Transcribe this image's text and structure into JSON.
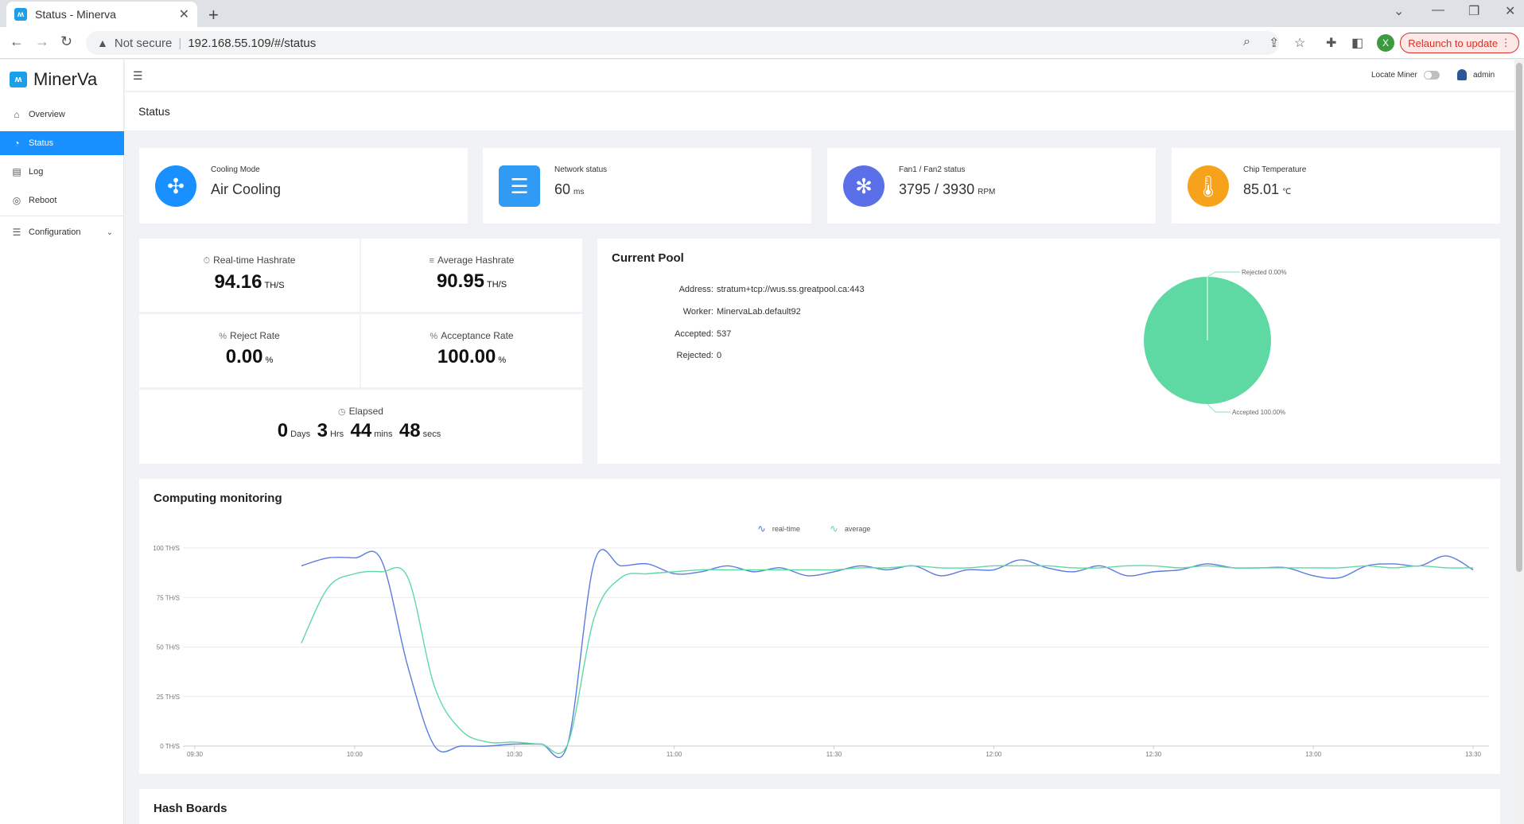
{
  "browser": {
    "tab_title": "Status - Minerva",
    "tab_favicon": "minerva-logo",
    "not_secure": "Not secure",
    "url": "192.168.55.109/#/status",
    "profile_initial": "X",
    "relaunch_label": "Relaunch to update"
  },
  "app": {
    "logo_text": "MinerVa",
    "menu": [
      {
        "label": "Overview",
        "icon": "home-icon"
      },
      {
        "label": "Status",
        "icon": "dashboard-icon"
      },
      {
        "label": "Log",
        "icon": "file-icon"
      },
      {
        "label": "Reboot",
        "icon": "power-icon"
      },
      {
        "label": "Configuration",
        "icon": "sliders-icon"
      }
    ],
    "locate_miner": "Locate Miner",
    "user": "admin",
    "page_title": "Status"
  },
  "stats": [
    {
      "label": "Cooling Mode",
      "value": "Air Cooling",
      "unit": "",
      "color": "#1890ff"
    },
    {
      "label": "Network status",
      "value": "60",
      "unit": "ms",
      "color": "#2f9bf5"
    },
    {
      "label": "Fan1 / Fan2 status",
      "value": "3795 / 3930",
      "unit": "RPM",
      "color": "#5b6fe8"
    },
    {
      "label": "Chip Temperature",
      "value": "85.01",
      "unit": "℃",
      "color": "#f7a21b"
    }
  ],
  "hashrate": {
    "realtime": {
      "label": "Real-time Hashrate",
      "value": "94.16",
      "unit": "TH/S"
    },
    "average": {
      "label": "Average Hashrate",
      "value": "90.95",
      "unit": "TH/S"
    },
    "reject": {
      "label": "Reject Rate",
      "value": "0.00",
      "unit": "%"
    },
    "accept": {
      "label": "Acceptance Rate",
      "value": "100.00",
      "unit": "%"
    },
    "elapsed": {
      "label": "Elapsed",
      "days": "0",
      "days_u": "Days",
      "hrs": "3",
      "hrs_u": "Hrs",
      "mins": "44",
      "mins_u": "mins",
      "secs": "48",
      "secs_u": "secs"
    }
  },
  "pool": {
    "title": "Current Pool",
    "address_label": "Address:",
    "address": "stratum+tcp://wus.ss.greatpool.ca:443",
    "worker_label": "Worker:",
    "worker": "MinervaLab.default92",
    "accepted_label": "Accepted:",
    "accepted": "537",
    "rejected_label": "Rejected:",
    "rejected": "0",
    "pie_rejected_label": "Rejected 0.00%",
    "pie_accepted_label": "Accepted 100.00%",
    "pie_color": "#5fd9a3"
  },
  "monitoring": {
    "title": "Computing monitoring",
    "legend_realtime": "real-time",
    "legend_average": "average",
    "realtime_color": "#5b7be0",
    "average_color": "#5fd9a3"
  },
  "hash_boards": {
    "title": "Hash Boards"
  },
  "chart_data": {
    "type": "line",
    "title": "",
    "ylim": [
      0,
      100
    ],
    "y_ticks": [
      "0 TH/S",
      "25 TH/S",
      "50 TH/S",
      "75 TH/S",
      "100 TH/S"
    ],
    "x_ticks": [
      "09:30",
      "10:00",
      "10:30",
      "11:00",
      "11:30",
      "12:00",
      "12:30",
      "13:00",
      "13:30"
    ],
    "x": [
      "09:50",
      "09:55",
      "10:00",
      "10:05",
      "10:10",
      "10:15",
      "10:20",
      "10:25",
      "10:30",
      "10:35",
      "10:40",
      "10:45",
      "10:50",
      "10:55",
      "11:00",
      "11:05",
      "11:10",
      "11:15",
      "11:20",
      "11:25",
      "11:30",
      "11:35",
      "11:40",
      "11:45",
      "11:50",
      "11:55",
      "12:00",
      "12:05",
      "12:10",
      "12:15",
      "12:20",
      "12:25",
      "12:30",
      "12:35",
      "12:40",
      "12:45",
      "12:50",
      "12:55",
      "13:00",
      "13:05",
      "13:10",
      "13:15",
      "13:20",
      "13:25",
      "13:30"
    ],
    "series": [
      {
        "name": "real-time",
        "values": [
          91,
          95,
          95,
          94,
          40,
          0,
          0,
          0,
          1,
          1,
          1,
          93,
          91,
          92,
          87,
          88,
          91,
          88,
          90,
          86,
          88,
          91,
          89,
          91,
          86,
          89,
          89,
          94,
          90,
          88,
          91,
          86,
          88,
          89,
          92,
          90,
          90,
          90,
          86,
          85,
          91,
          92,
          91,
          96,
          89
        ]
      },
      {
        "name": "average",
        "values": [
          52,
          80,
          87,
          88,
          85,
          30,
          8,
          2,
          2,
          1,
          1,
          65,
          85,
          87,
          88,
          89,
          89,
          89,
          89,
          89,
          89,
          90,
          90,
          91,
          90,
          90,
          91,
          91,
          91,
          90,
          90,
          91,
          91,
          90,
          91,
          90,
          90,
          90,
          90,
          90,
          91,
          90,
          91,
          90,
          90
        ]
      }
    ]
  }
}
